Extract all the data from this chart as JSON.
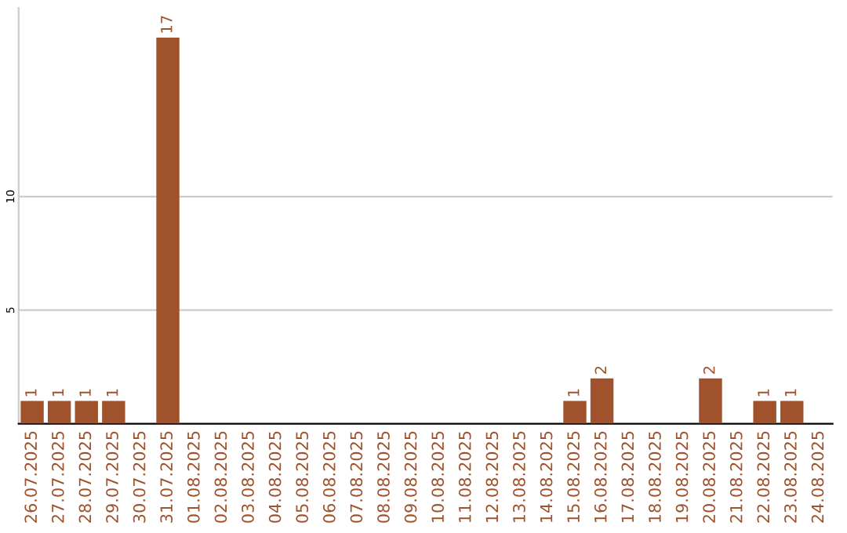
{
  "chart_data": {
    "type": "bar",
    "categories": [
      "26.07.2025",
      "27.07.2025",
      "28.07.2025",
      "29.07.2025",
      "30.07.2025",
      "31.07.2025",
      "01.08.2025",
      "02.08.2025",
      "03.08.2025",
      "04.08.2025",
      "05.08.2025",
      "06.08.2025",
      "07.08.2025",
      "08.08.2025",
      "09.08.2025",
      "10.08.2025",
      "11.08.2025",
      "12.08.2025",
      "13.08.2025",
      "14.08.2025",
      "15.08.2025",
      "16.08.2025",
      "17.08.2025",
      "18.08.2025",
      "19.08.2025",
      "20.08.2025",
      "21.08.2025",
      "22.08.2025",
      "23.08.2025",
      "24.08.2025"
    ],
    "values": [
      1,
      1,
      1,
      1,
      0,
      17,
      0,
      0,
      0,
      0,
      0,
      0,
      0,
      0,
      0,
      0,
      0,
      0,
      0,
      0,
      1,
      2,
      0,
      0,
      0,
      2,
      0,
      1,
      1,
      0
    ],
    "value_labels": [
      "1",
      "1",
      "1",
      "1",
      null,
      "17",
      null,
      null,
      null,
      null,
      null,
      null,
      null,
      null,
      null,
      null,
      null,
      null,
      null,
      null,
      "1",
      "2",
      null,
      null,
      null,
      "2",
      null,
      "1",
      "1",
      null
    ],
    "color": "#a0522d",
    "ylim": [
      0,
      18.3
    ],
    "yticks": [
      5,
      10
    ],
    "grid": "y"
  }
}
